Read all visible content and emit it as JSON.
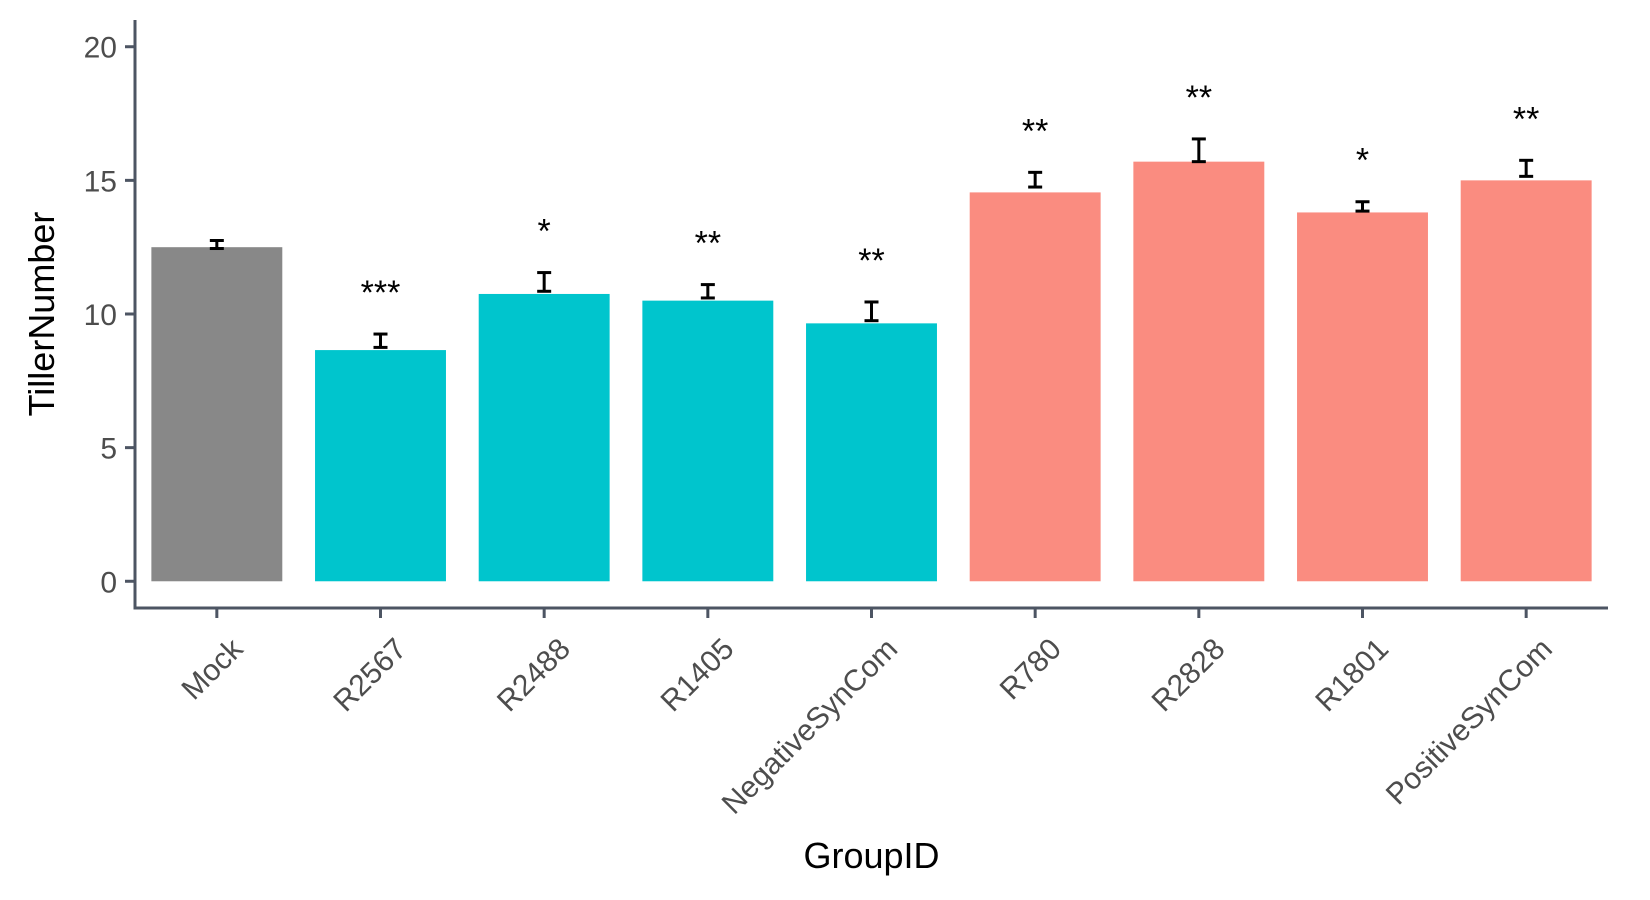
{
  "chart_data": {
    "type": "bar",
    "title": "",
    "xlabel": "GroupID",
    "ylabel": "TillerNumber",
    "ylim": [
      -1,
      21
    ],
    "yticks": [
      0,
      5,
      10,
      15,
      20
    ],
    "grid": false,
    "legend": "none",
    "categories": [
      "Mock",
      "R2567",
      "R2488",
      "R1405",
      "NegativeSynCom",
      "R780",
      "R2828",
      "R1801",
      "PositiveSynCom"
    ],
    "values": [
      12.5,
      8.65,
      10.75,
      10.5,
      9.65,
      14.55,
      15.7,
      13.8,
      15.0
    ],
    "error_low": [
      12.45,
      8.75,
      10.85,
      10.6,
      9.75,
      14.75,
      15.7,
      13.85,
      15.15
    ],
    "error_high": [
      12.75,
      9.25,
      11.55,
      11.1,
      10.45,
      15.3,
      16.55,
      14.2,
      15.75
    ],
    "significance": [
      "",
      "***",
      "*",
      "**",
      "**",
      "**",
      "**",
      "*",
      "**"
    ],
    "group_colors": [
      "#888888",
      "#00c5cd",
      "#00c5cd",
      "#00c5cd",
      "#00c5cd",
      "#fa8c80",
      "#fa8c80",
      "#fa8c80",
      "#fa8c80"
    ],
    "axis_color": "#4d5563"
  }
}
